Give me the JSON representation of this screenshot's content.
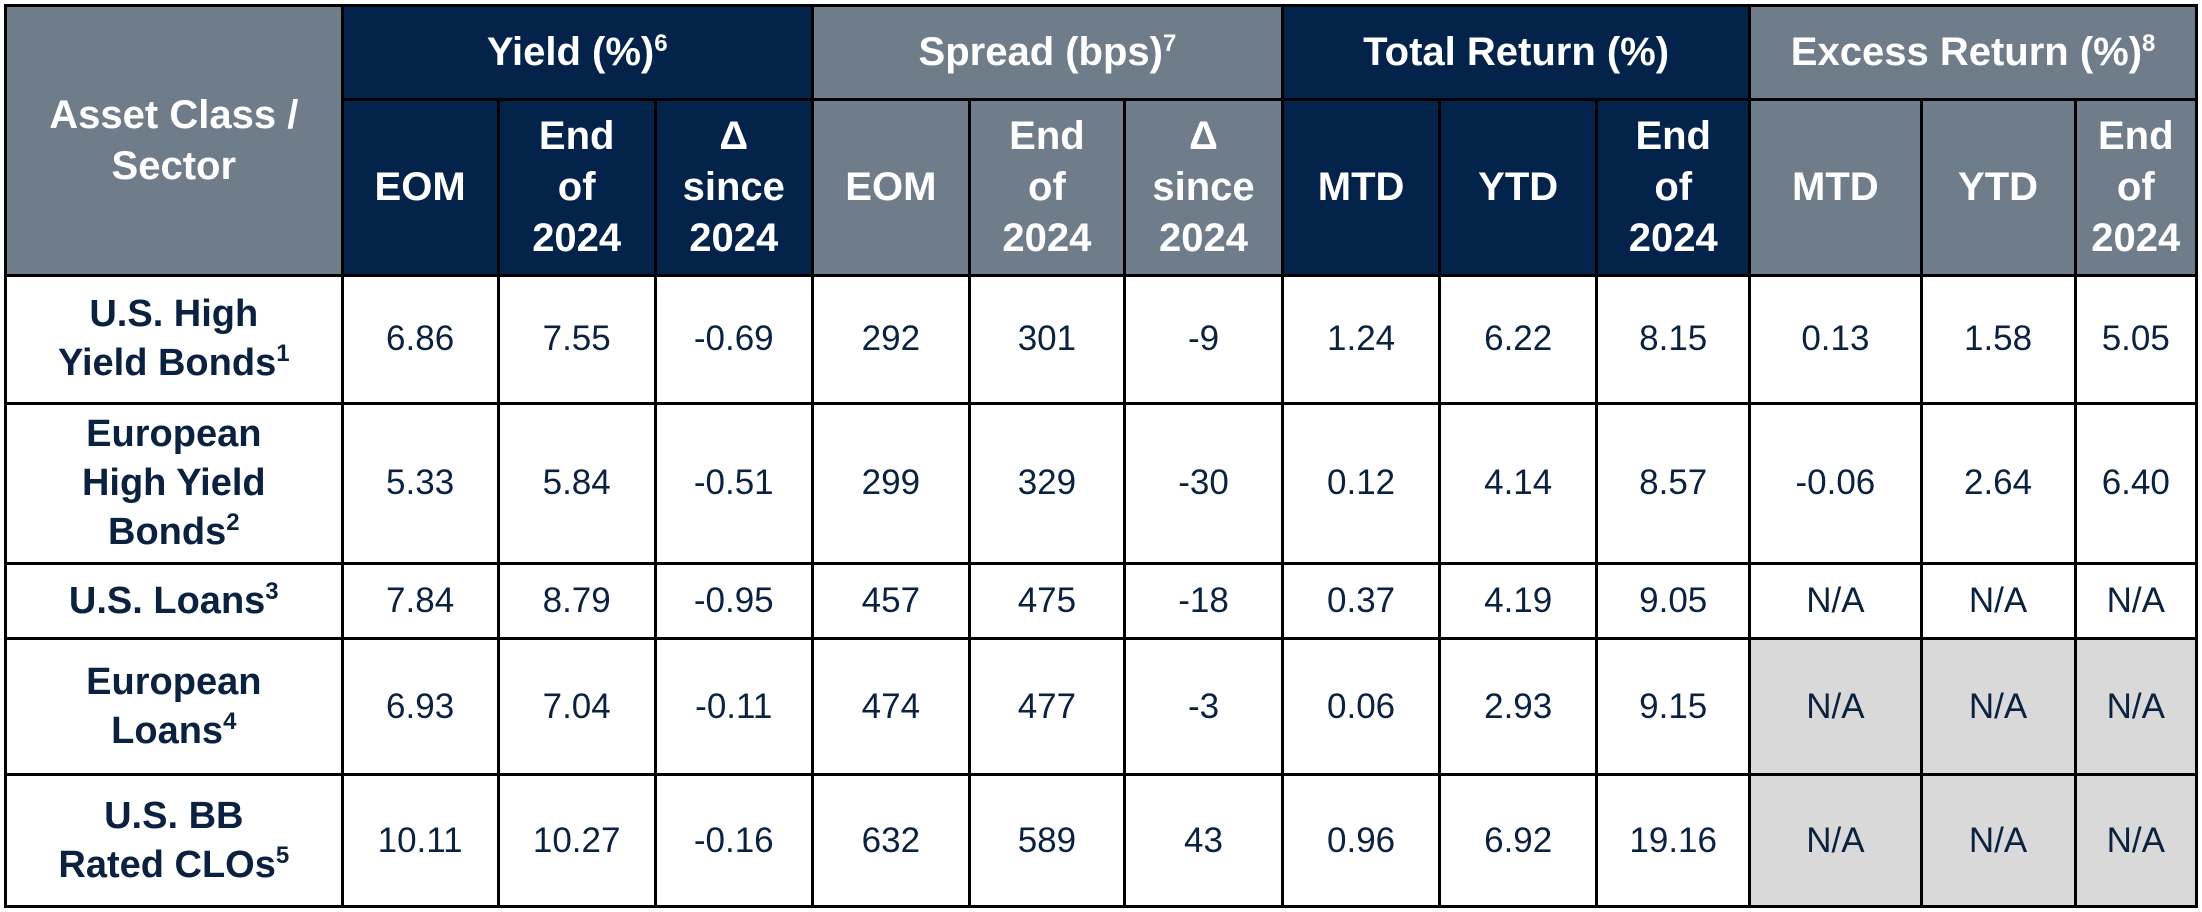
{
  "header": {
    "asset_label": "Asset Class / Sector",
    "groups": [
      {
        "label": "Yield (%)",
        "note": "6"
      },
      {
        "label": "Spread (bps)",
        "note": "7"
      },
      {
        "label": "Total Return (%)",
        "note": ""
      },
      {
        "label": "Excess Return (%)",
        "note": "8"
      }
    ],
    "columns": [
      {
        "l1": "EOM",
        "l2": "",
        "l3": ""
      },
      {
        "l1": "End",
        "l2": "of",
        "l3": "2024"
      },
      {
        "l1": "Δ",
        "l2": "since",
        "l3": "2024"
      },
      {
        "l1": "EOM",
        "l2": "",
        "l3": ""
      },
      {
        "l1": "End",
        "l2": "of",
        "l3": "2024"
      },
      {
        "l1": "Δ",
        "l2": "since",
        "l3": "2024"
      },
      {
        "l1": "MTD",
        "l2": "",
        "l3": ""
      },
      {
        "l1": "YTD",
        "l2": "",
        "l3": ""
      },
      {
        "l1": "End",
        "l2": "of",
        "l3": "2024"
      },
      {
        "l1": "MTD",
        "l2": "",
        "l3": ""
      },
      {
        "l1": "YTD",
        "l2": "",
        "l3": ""
      },
      {
        "l1": "End",
        "l2": "of",
        "l3": "2024"
      }
    ]
  },
  "rows": [
    {
      "lines": [
        "U.S. High",
        "Yield Bonds"
      ],
      "note": "1",
      "values": [
        "6.86",
        "7.55",
        "-0.69",
        "292",
        "301",
        "-9",
        "1.24",
        "6.22",
        "8.15",
        "0.13",
        "1.58",
        "5.05"
      ],
      "grey": [
        false,
        false,
        false
      ]
    },
    {
      "lines": [
        "European",
        "High Yield",
        "Bonds"
      ],
      "note": "2",
      "values": [
        "5.33",
        "5.84",
        "-0.51",
        "299",
        "329",
        "-30",
        "0.12",
        "4.14",
        "8.57",
        "-0.06",
        "2.64",
        "6.40"
      ],
      "grey": [
        false,
        false,
        false
      ]
    },
    {
      "lines": [
        "U.S. Loans"
      ],
      "note": "3",
      "values": [
        "7.84",
        "8.79",
        "-0.95",
        "457",
        "475",
        "-18",
        "0.37",
        "4.19",
        "9.05",
        "N/A",
        "N/A",
        "N/A"
      ],
      "grey": [
        false,
        false,
        false
      ]
    },
    {
      "lines": [
        "European",
        "Loans"
      ],
      "note": "4",
      "values": [
        "6.93",
        "7.04",
        "-0.11",
        "474",
        "477",
        "-3",
        "0.06",
        "2.93",
        "9.15",
        "N/A",
        "N/A",
        "N/A"
      ],
      "grey": [
        true,
        true,
        true
      ]
    },
    {
      "lines": [
        "U.S. BB",
        "Rated CLOs"
      ],
      "note": "5",
      "values": [
        "10.11",
        "10.27",
        "-0.16",
        "632",
        "589",
        "43",
        "0.96",
        "6.92",
        "19.16",
        "N/A",
        "N/A",
        "N/A"
      ],
      "grey": [
        true,
        true,
        true
      ]
    }
  ],
  "colors": {
    "navy": "#03234b",
    "slate": "#6f7c8a",
    "text": "#0a2240",
    "grey_cell": "#d9d9d9"
  }
}
